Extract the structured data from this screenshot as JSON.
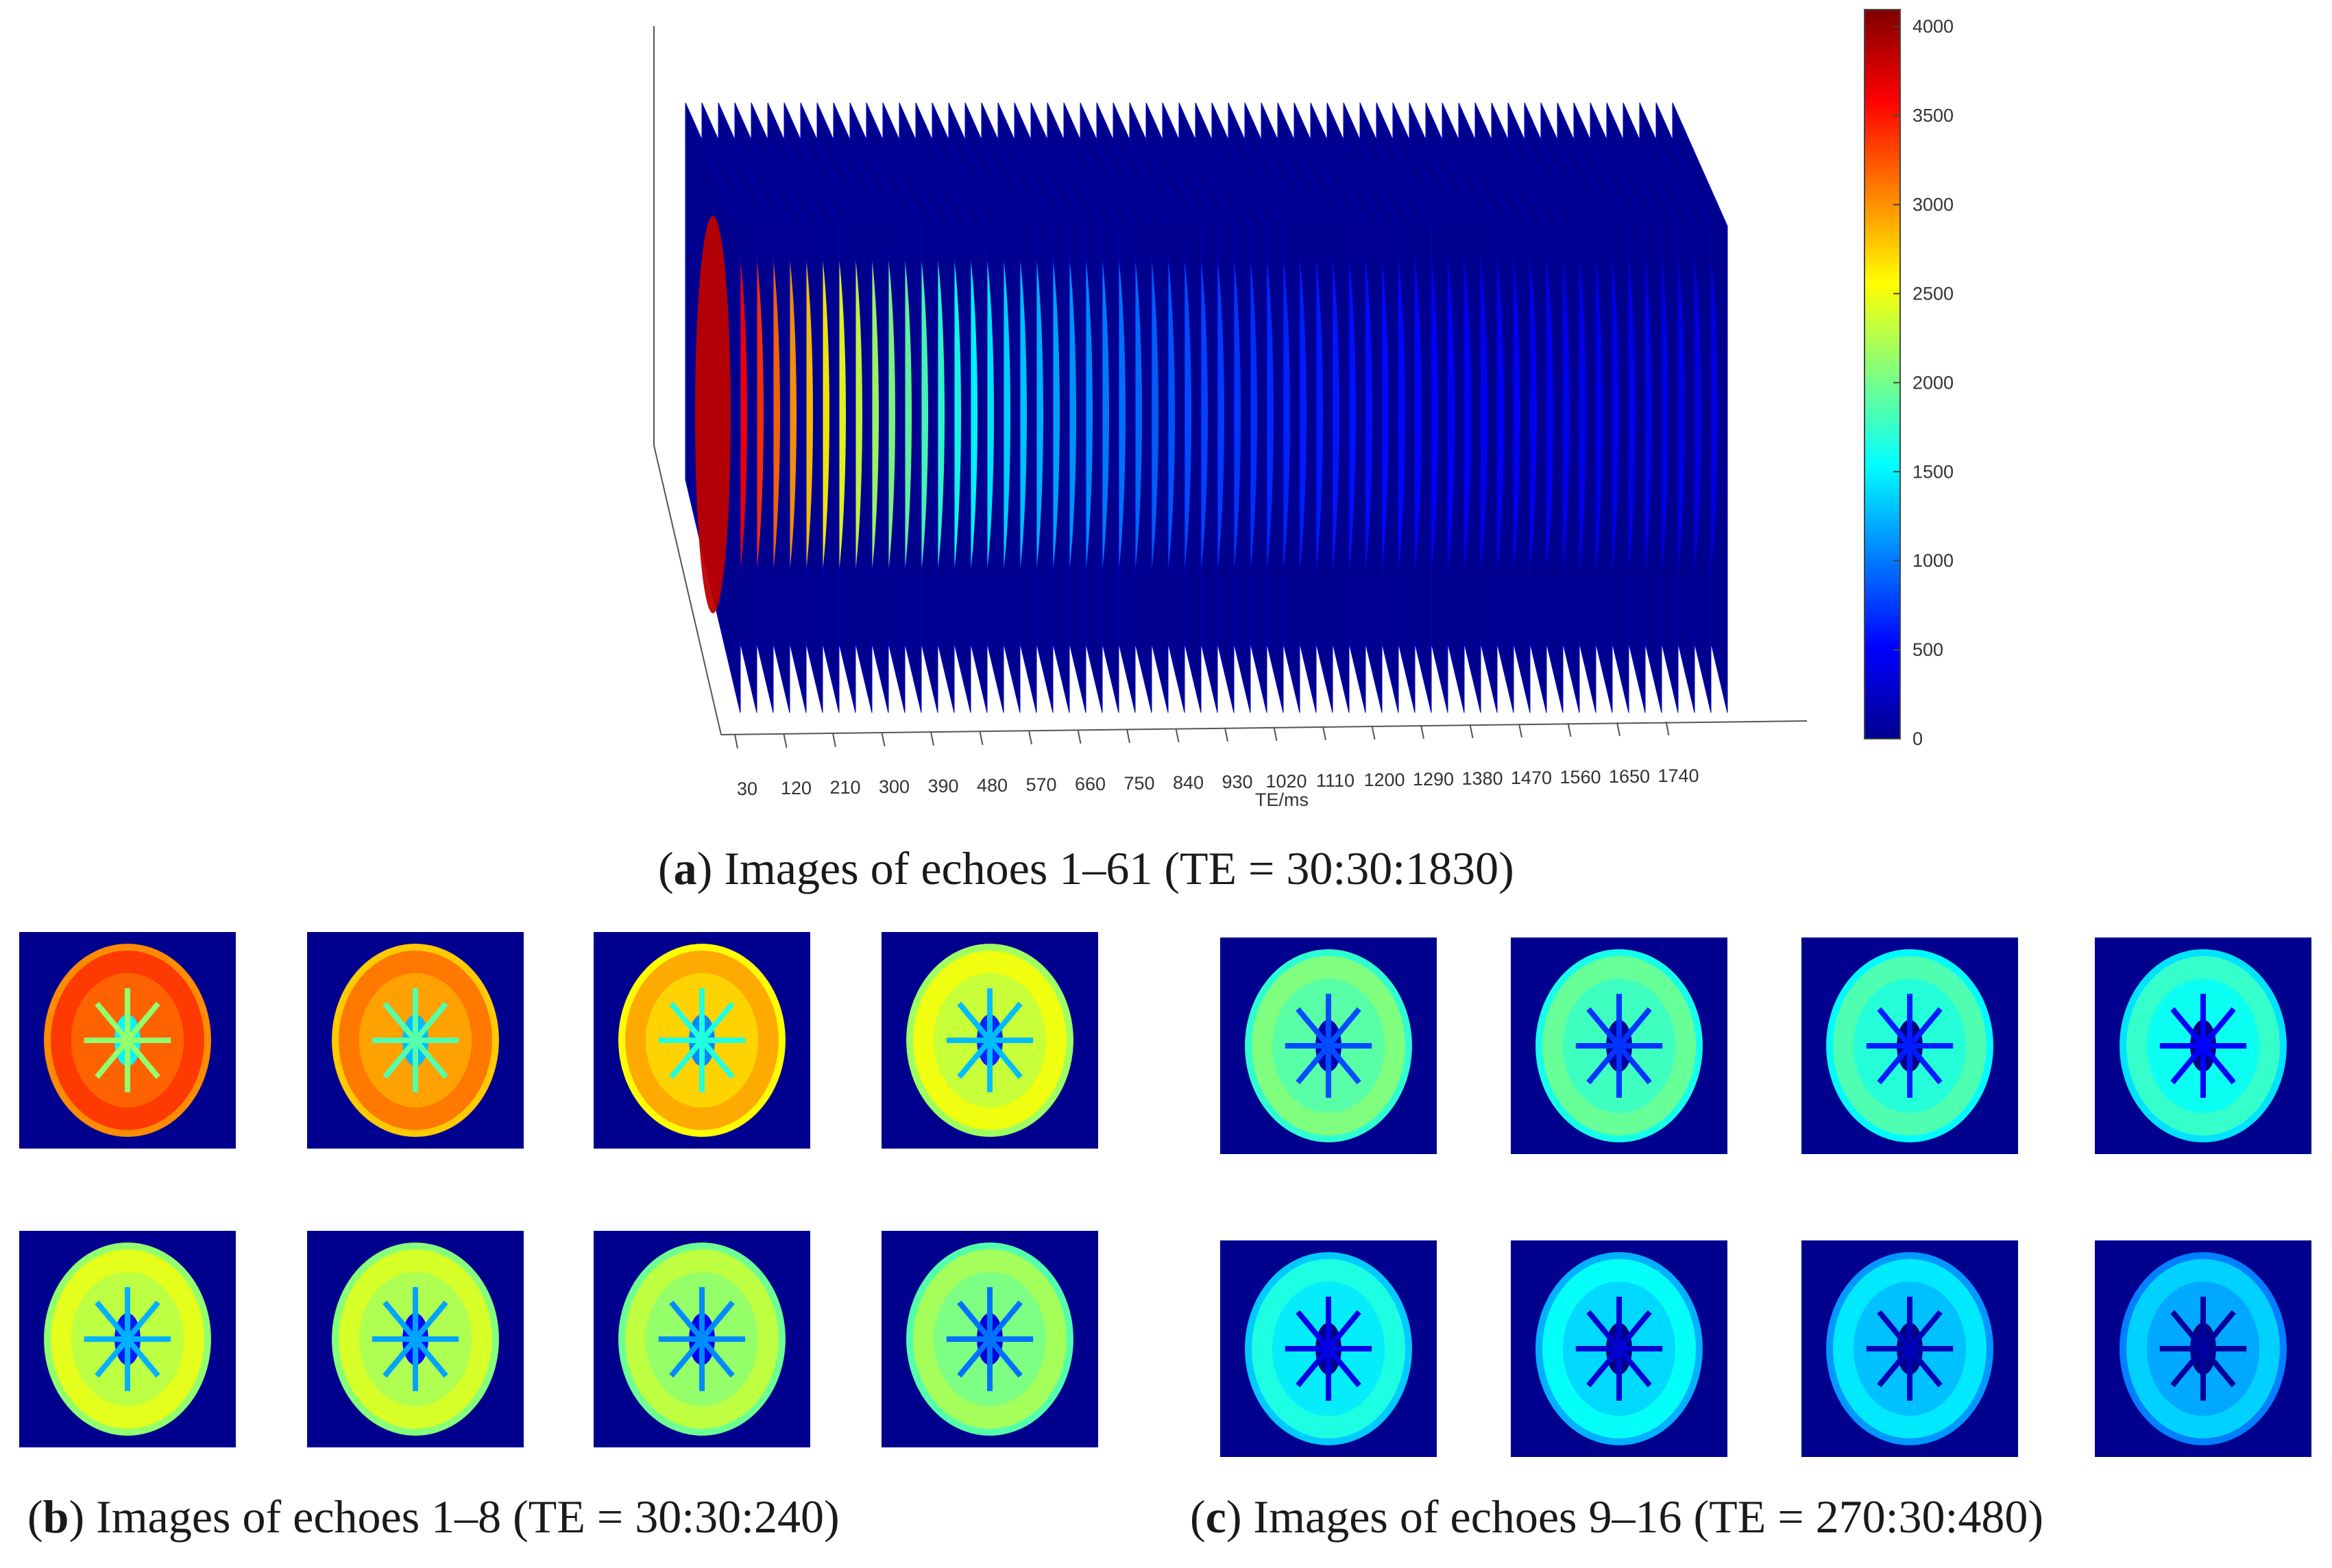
{
  "figure": {
    "panel_a": {
      "label": "a",
      "caption_text": "Images of echoes 1–61 (TE = 30:30:1830)",
      "axis_label": "TE/ms",
      "x_ticks": [
        "30",
        "120",
        "210",
        "300",
        "390",
        "480",
        "570",
        "660",
        "750",
        "840",
        "930",
        "1020",
        "1110",
        "1200",
        "1290",
        "1380",
        "1470",
        "1560",
        "1650",
        "1740"
      ],
      "echo_count": 61,
      "colorbar": {
        "ticks": [
          "4000",
          "3500",
          "3000",
          "2500",
          "2000",
          "1500",
          "1000",
          "500",
          "0"
        ],
        "min": 0,
        "max": 4095
      }
    },
    "panel_b": {
      "label": "b",
      "caption_text": "Images of echoes 1–8 (TE = 30:30:240)",
      "echoes": [
        1,
        2,
        3,
        4,
        5,
        6,
        7,
        8
      ],
      "mean_intensity": [
        3350,
        3100,
        2900,
        2500,
        2450,
        2400,
        2300,
        2200
      ]
    },
    "panel_c": {
      "label": "c",
      "caption_text": "Images of echoes 9–16 (TE = 270:30:480)",
      "echoes": [
        9,
        10,
        11,
        12,
        13,
        14,
        15,
        16
      ],
      "mean_intensity": [
        2050,
        1950,
        1850,
        1750,
        1650,
        1550,
        1450,
        1350
      ]
    },
    "colors": {
      "background_blue": "#00008f",
      "colormap": "jet"
    }
  }
}
